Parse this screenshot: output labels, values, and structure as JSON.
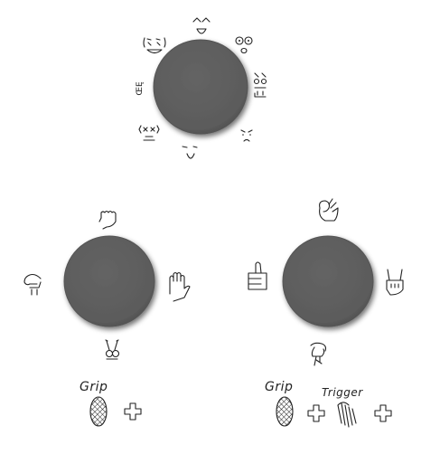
{
  "emote_wheel": {
    "center_label": "",
    "faces": [
      "grin-face",
      "glasses-face",
      "smile-face",
      "grumpy-face",
      "sad-face",
      "squint-face",
      "nervous-face",
      "text-face"
    ],
    "text_face_label": "ŒĘ"
  },
  "left_hand_wheel": {
    "gestures": [
      "fist-up",
      "open-palm",
      "peace-sign",
      "point-left"
    ]
  },
  "right_hand_wheel": {
    "gestures": [
      "ok-sign",
      "rock-sign",
      "point-down",
      "thumbs-up"
    ]
  },
  "legend": {
    "grip_label_left": "Grip",
    "grip_label_right": "Grip",
    "trigger_label": "Trigger"
  },
  "colors": {
    "wheel_fill": "#5e5e5e",
    "wheel_shadow": "#2a2a2a",
    "ink": "#222222"
  }
}
